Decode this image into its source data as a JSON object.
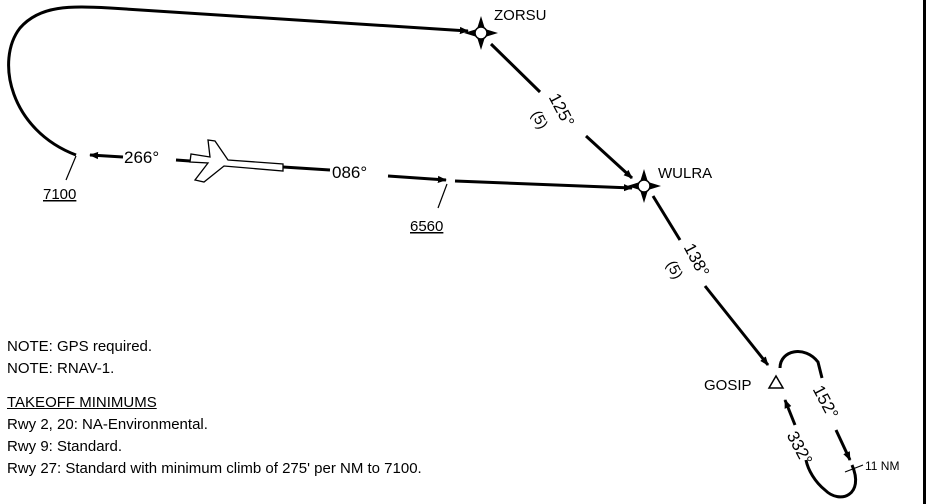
{
  "waypoints": {
    "zorsu": "ZORSU",
    "wulra": "WULRA",
    "gosip": "GOSIP"
  },
  "legs": {
    "zorsu_wulra": {
      "course": "125°",
      "distance": "(5)"
    },
    "wulra_gosip": {
      "course": "138°",
      "distance": "(5)"
    },
    "hold_outbound": "152°",
    "hold_inbound": "332°",
    "hold_length": "11 NM",
    "departure_course": "086°",
    "reverse_course": "266°"
  },
  "altitudes": {
    "west": "7100",
    "middle": "6560"
  },
  "notes": {
    "note1": "NOTE: GPS required.",
    "note2": "NOTE: RNAV-1.",
    "takeoff_header": "TAKEOFF MINIMUMS",
    "rwy_2_20": "Rwy 2, 20: NA-Environmental.",
    "rwy_9": "Rwy 9: Standard.",
    "rwy_27": "Rwy 27: Standard with minimum climb of 275' per NM to 7100."
  },
  "icons": {
    "aircraft": "runway-aircraft-icon",
    "flyover": "four-point-star-waypoint-icon",
    "flyby": "triangle-waypoint-icon"
  }
}
